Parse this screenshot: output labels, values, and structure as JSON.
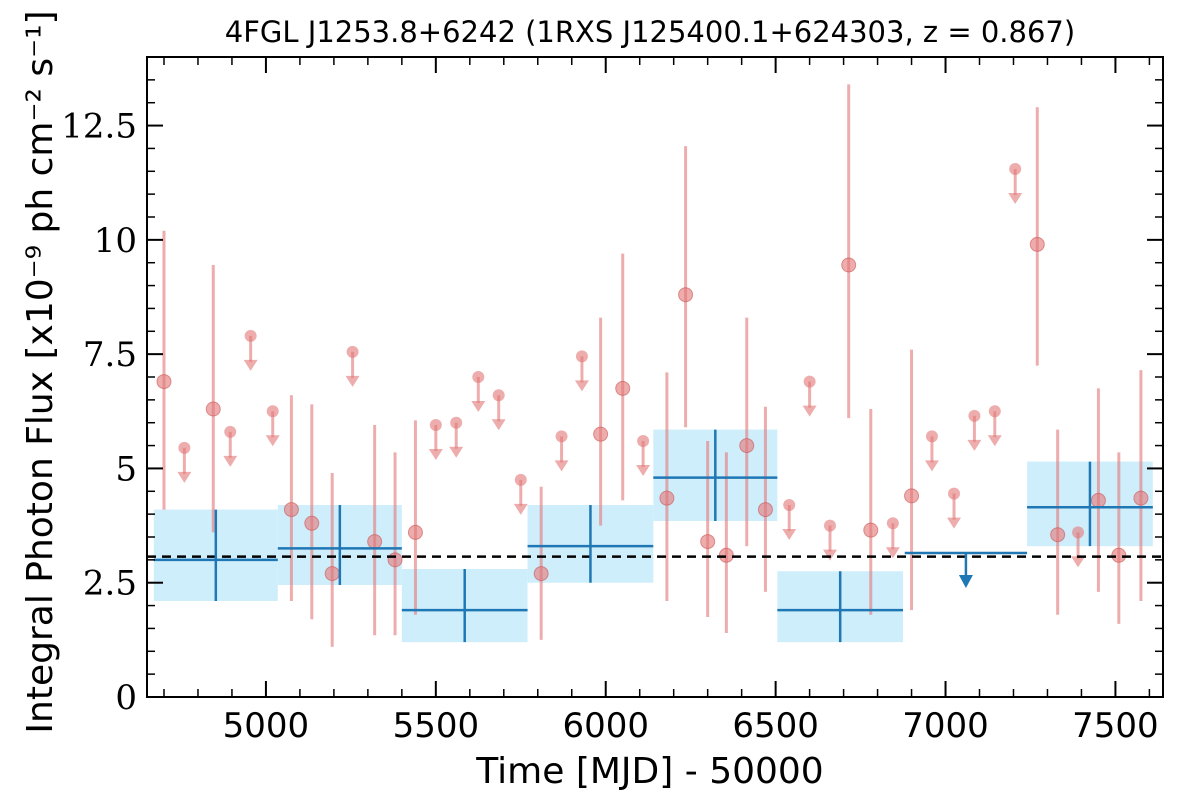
{
  "chart_data": {
    "type": "scatter",
    "title": "4FGL J1253.8+6242 (1RXS J125400.1+624303, z = 0.867)",
    "xlabel": "Time [MJD] - 50000",
    "ylabel": "Integral Photon Flux [x10⁻⁹ ph cm⁻² s⁻¹]",
    "xlim": [
      4650,
      7640
    ],
    "ylim": [
      0,
      14
    ],
    "xticks": [
      5000,
      5500,
      6000,
      6500,
      7000,
      7500
    ],
    "xtick_labels": [
      "5000",
      "5500",
      "6000",
      "6500",
      "7000",
      "7500"
    ],
    "yticks": [
      0,
      2.5,
      5,
      7.5,
      10,
      12.5
    ],
    "ytick_labels": [
      "0",
      "2.5",
      "5",
      "7.5",
      "10",
      "12.5"
    ],
    "reference_line": {
      "y": 3.07,
      "style": "dashed",
      "color": "#000000"
    },
    "colors": {
      "points": "#e37777",
      "blocks": "#1f77b4",
      "block_fill": "#cfeefc"
    },
    "series": [
      {
        "kind": "detections",
        "points": [
          {
            "x": 4700,
            "y": 6.9,
            "lo": 4.1,
            "hi": 10.2
          },
          {
            "x": 4845,
            "y": 6.3,
            "lo": 3.6,
            "hi": 9.45
          },
          {
            "x": 5075,
            "y": 4.1,
            "lo": 2.1,
            "hi": 6.6
          },
          {
            "x": 5135,
            "y": 3.8,
            "lo": 1.7,
            "hi": 6.4
          },
          {
            "x": 5195,
            "y": 2.7,
            "lo": 1.1,
            "hi": 4.9
          },
          {
            "x": 5320,
            "y": 3.4,
            "lo": 1.35,
            "hi": 5.95
          },
          {
            "x": 5380,
            "y": 3.0,
            "lo": 1.35,
            "hi": 5.35
          },
          {
            "x": 5440,
            "y": 3.6,
            "lo": 1.8,
            "hi": 6.05
          },
          {
            "x": 5810,
            "y": 2.7,
            "lo": 1.25,
            "hi": 4.6
          },
          {
            "x": 5985,
            "y": 5.75,
            "lo": 3.75,
            "hi": 8.3
          },
          {
            "x": 6050,
            "y": 6.75,
            "lo": 4.3,
            "hi": 9.7
          },
          {
            "x": 6180,
            "y": 4.35,
            "lo": 2.1,
            "hi": 7.1
          },
          {
            "x": 6235,
            "y": 8.8,
            "lo": 5.9,
            "hi": 12.05
          },
          {
            "x": 6300,
            "y": 3.4,
            "lo": 1.75,
            "hi": 5.6
          },
          {
            "x": 6355,
            "y": 3.1,
            "lo": 1.4,
            "hi": 5.35
          },
          {
            "x": 6415,
            "y": 5.5,
            "lo": 3.3,
            "hi": 8.3
          },
          {
            "x": 6470,
            "y": 4.1,
            "lo": 2.3,
            "hi": 6.35
          },
          {
            "x": 6715,
            "y": 9.45,
            "lo": 6.1,
            "hi": 13.4
          },
          {
            "x": 6780,
            "y": 3.65,
            "lo": 1.8,
            "hi": 6.3
          },
          {
            "x": 6900,
            "y": 4.4,
            "lo": 1.9,
            "hi": 7.6
          },
          {
            "x": 7270,
            "y": 9.9,
            "lo": 7.25,
            "hi": 12.9
          },
          {
            "x": 7330,
            "y": 3.55,
            "lo": 1.8,
            "hi": 5.85
          },
          {
            "x": 7450,
            "y": 4.3,
            "lo": 2.3,
            "hi": 6.75
          },
          {
            "x": 7510,
            "y": 3.1,
            "lo": 1.6,
            "hi": 5.35
          },
          {
            "x": 7575,
            "y": 4.35,
            "lo": 2.1,
            "hi": 7.15
          }
        ]
      },
      {
        "kind": "upper_limits",
        "points": [
          {
            "x": 4760,
            "y": 5.45
          },
          {
            "x": 4895,
            "y": 5.8
          },
          {
            "x": 4955,
            "y": 7.9
          },
          {
            "x": 5020,
            "y": 6.25
          },
          {
            "x": 5255,
            "y": 7.55
          },
          {
            "x": 5500,
            "y": 5.95
          },
          {
            "x": 5560,
            "y": 6.0
          },
          {
            "x": 5625,
            "y": 7.0
          },
          {
            "x": 5685,
            "y": 6.6
          },
          {
            "x": 5750,
            "y": 4.75
          },
          {
            "x": 5870,
            "y": 5.7
          },
          {
            "x": 5930,
            "y": 7.45
          },
          {
            "x": 6110,
            "y": 5.6
          },
          {
            "x": 6540,
            "y": 4.2
          },
          {
            "x": 6600,
            "y": 6.9
          },
          {
            "x": 6660,
            "y": 3.75
          },
          {
            "x": 6845,
            "y": 3.8
          },
          {
            "x": 6960,
            "y": 5.7
          },
          {
            "x": 7025,
            "y": 4.45
          },
          {
            "x": 7085,
            "y": 6.15
          },
          {
            "x": 7145,
            "y": 6.25
          },
          {
            "x": 7205,
            "y": 11.55
          },
          {
            "x": 7390,
            "y": 3.6
          }
        ]
      },
      {
        "kind": "bayesian_blocks",
        "blocks": [
          {
            "x0": 4670,
            "x1": 5035,
            "y": 3.0,
            "lo": 2.1,
            "hi": 4.1
          },
          {
            "x0": 5035,
            "x1": 5400,
            "y": 3.25,
            "lo": 2.45,
            "hi": 4.2
          },
          {
            "x0": 5400,
            "x1": 5770,
            "y": 1.9,
            "lo": 1.2,
            "hi": 2.8
          },
          {
            "x0": 5770,
            "x1": 6140,
            "y": 3.3,
            "lo": 2.5,
            "hi": 4.2
          },
          {
            "x0": 6140,
            "x1": 6505,
            "y": 4.8,
            "lo": 3.85,
            "hi": 5.85
          },
          {
            "x0": 6505,
            "x1": 6875,
            "y": 1.9,
            "lo": 1.2,
            "hi": 2.75
          }
        ],
        "upper_limit_blocks": [
          {
            "x0": 6880,
            "x1": 7240,
            "y": 3.15
          }
        ],
        "shaded_blocks": [
          {
            "x0": 7240,
            "x1": 7610,
            "y": 4.15,
            "lo": 3.3,
            "hi": 5.15
          }
        ]
      }
    ]
  }
}
